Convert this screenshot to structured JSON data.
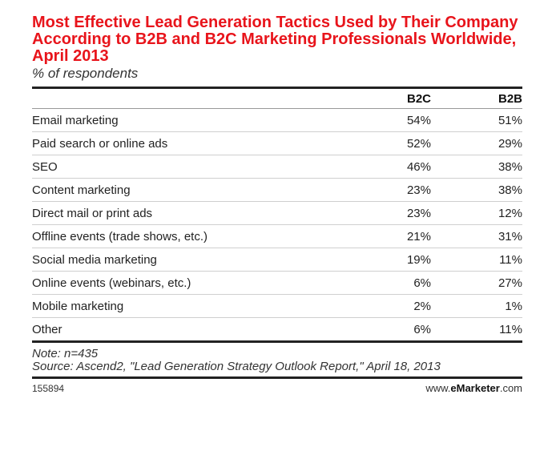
{
  "chart_data": {
    "type": "table",
    "title": "Most Effective Lead Generation Tactics Used by Their Company According to B2B and B2C Marketing Professionals Worldwide, April 2013",
    "subtitle": "% of respondents",
    "columns": [
      "B2C",
      "B2B"
    ],
    "categories": [
      "Email marketing",
      "Paid search or online ads",
      "SEO",
      "Content marketing",
      "Direct mail or print ads",
      "Offline events (trade shows, etc.)",
      "Social media marketing",
      "Online events (webinars, etc.)",
      "Mobile marketing",
      "Other"
    ],
    "series": [
      {
        "name": "B2C",
        "values": [
          54,
          52,
          46,
          23,
          23,
          21,
          19,
          6,
          2,
          6
        ]
      },
      {
        "name": "B2B",
        "values": [
          51,
          29,
          38,
          38,
          12,
          31,
          11,
          27,
          1,
          11
        ]
      }
    ],
    "unit": "%"
  },
  "notes": {
    "note": "Note: n=435",
    "source": "Source: Ascend2, \"Lead Generation Strategy Outlook Report,\" April 18, 2013"
  },
  "footer": {
    "chart_id": "155894",
    "brand_prefix": "www.",
    "brand_name": "eMarketer",
    "brand_suffix": ".com"
  }
}
